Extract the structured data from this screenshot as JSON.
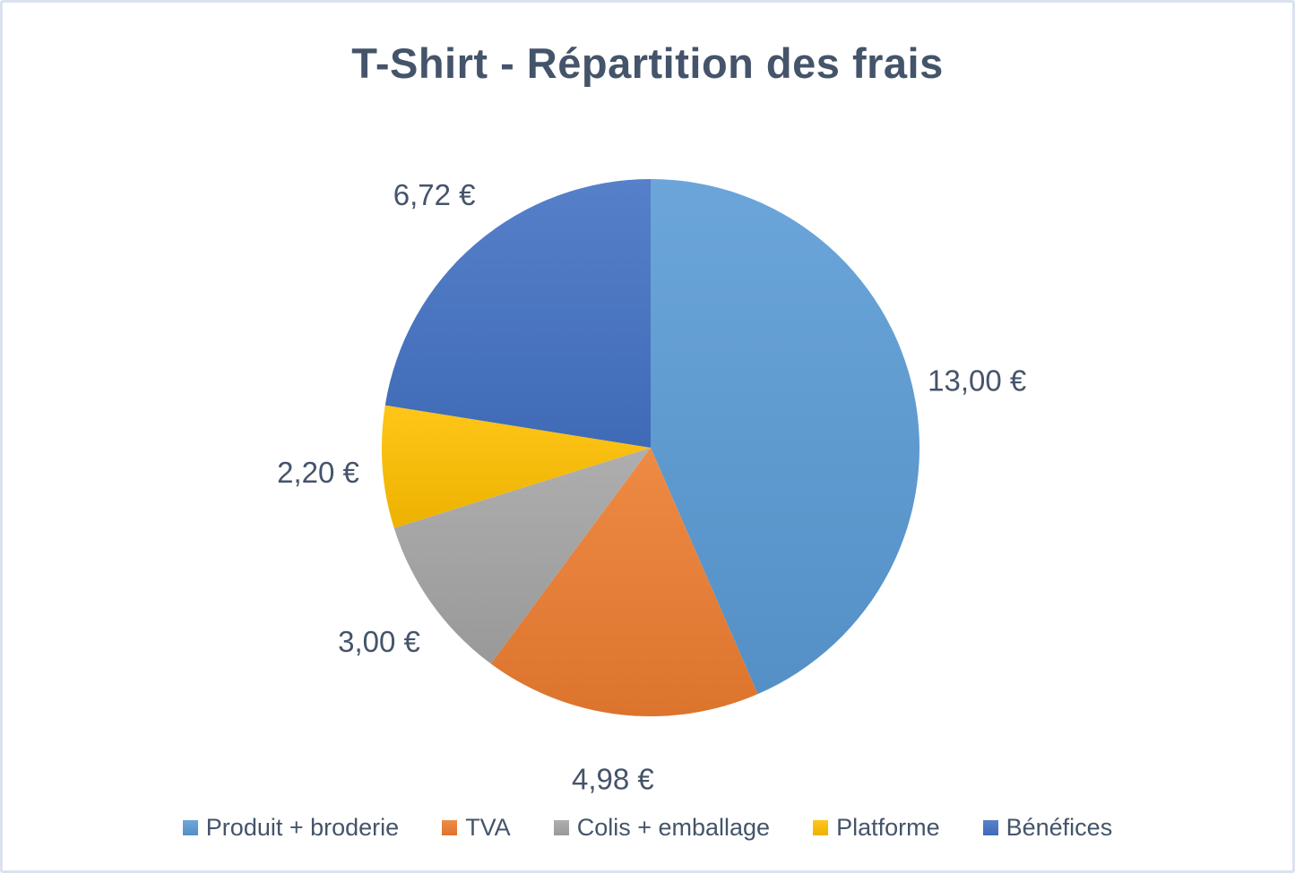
{
  "frame": {
    "background_color": "#ffffff",
    "border_color": "#dbe2ef"
  },
  "title": {
    "text": "T-Shirt - Répartition des frais",
    "color": "#44546a"
  },
  "chart_data": {
    "type": "pie",
    "title": "T-Shirt - Répartition des frais",
    "currency": "€",
    "total": 29.9,
    "start_angle_deg": 0,
    "direction": "clockwise",
    "legend_position": "bottom",
    "data_labels": "outside",
    "label_color": "#44546a",
    "slices": [
      {
        "label": "Produit + broderie",
        "value": 13.0,
        "display": "13,00 €",
        "color": "#5b9bd5"
      },
      {
        "label": "TVA",
        "value": 4.98,
        "display": "4,98 €",
        "color": "#ed7d31"
      },
      {
        "label": "Colis + emballage",
        "value": 3.0,
        "display": "3,00 €",
        "color": "#a5a5a5"
      },
      {
        "label": "Platforme",
        "value": 2.2,
        "display": "2,20 €",
        "color": "#ffc000"
      },
      {
        "label": "Bénéfices",
        "value": 6.72,
        "display": "6,72 €",
        "color": "#4472c4"
      }
    ]
  }
}
